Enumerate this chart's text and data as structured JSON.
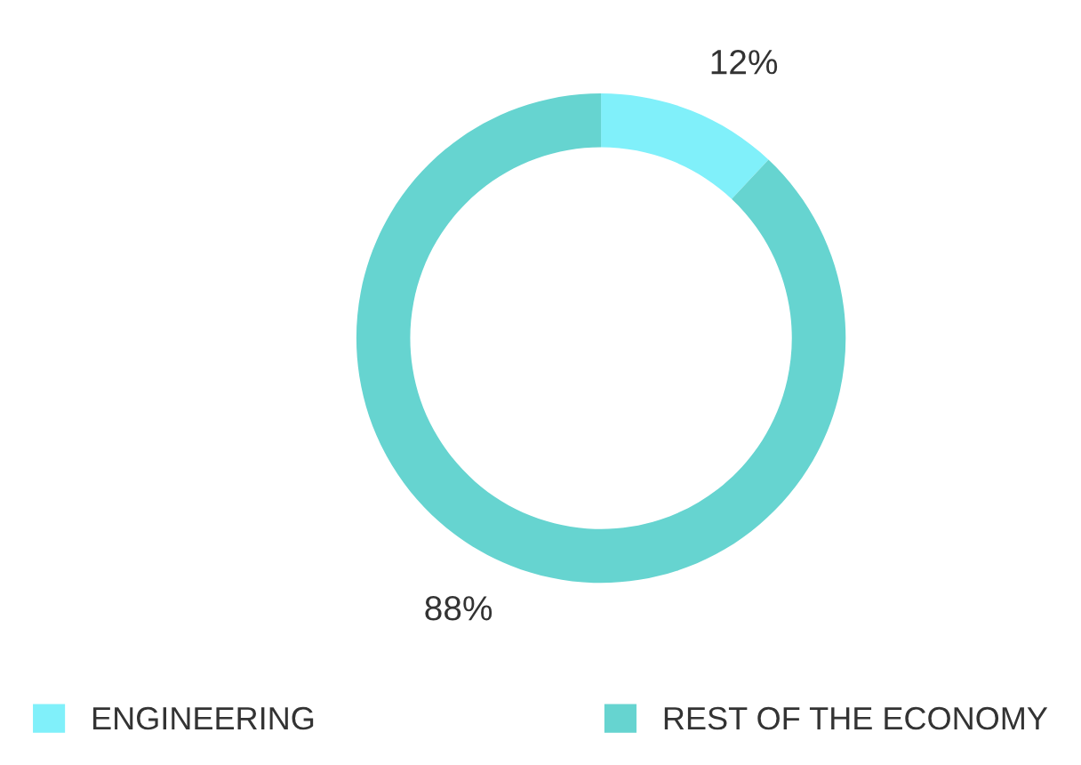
{
  "chart_data": {
    "type": "donut",
    "categories": [
      "ENGINEERING",
      "REST OF THE ECONOMY"
    ],
    "values": [
      12,
      88
    ],
    "colors": [
      "#80f0fa",
      "#66d4d0"
    ],
    "value_labels": [
      "12%",
      "88%"
    ],
    "legend": "bottom"
  }
}
